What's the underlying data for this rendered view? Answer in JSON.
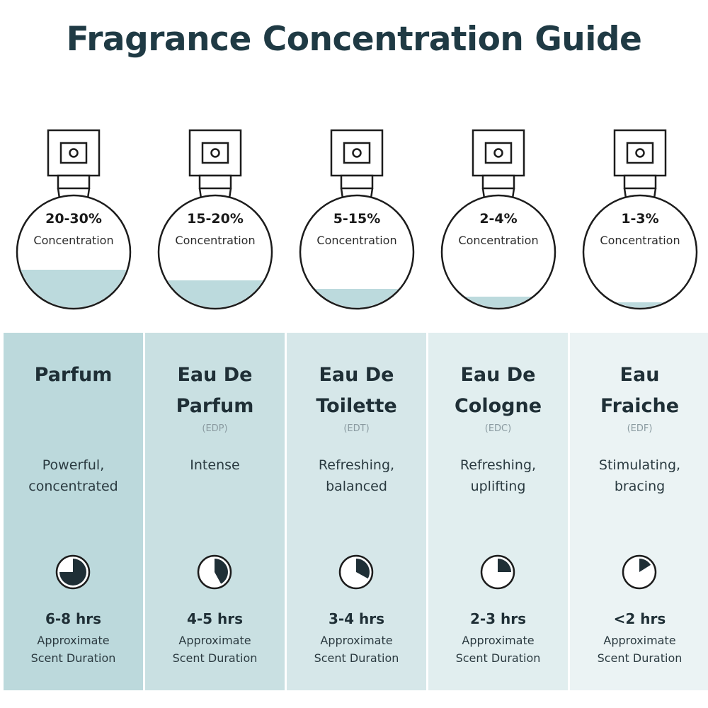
{
  "title": "Fragrance Concentration Guide",
  "colors": {
    "liquid": "#bcdadd",
    "outline": "#1c1c1c",
    "clock_fill": "#1f2f36",
    "panel_backgrounds": [
      "#bcd9dc",
      "#c9e0e2",
      "#d6e7e9",
      "#e1eeef",
      "#ebf3f4"
    ]
  },
  "duration_label": "Approximate Scent Duration",
  "types": [
    {
      "concentration": "20-30%",
      "concentration_label": "Concentration",
      "fill_level": 0.3,
      "name": "Parfum",
      "abbreviation": "",
      "description": "Powerful, concentrated",
      "duration": "6-8 hrs",
      "duration_fraction": 0.75,
      "duration_label_1": "Approximate",
      "duration_label_2": "Scent Duration"
    },
    {
      "concentration": "15-20%",
      "concentration_label": "Concentration",
      "fill_level": 0.22,
      "name": "Eau De Parfum",
      "abbreviation": "(EDP)",
      "description": "Intense",
      "duration": "4-5 hrs",
      "duration_fraction": 0.42,
      "duration_label_1": "Approximate",
      "duration_label_2": "Scent Duration"
    },
    {
      "concentration": "5-15%",
      "concentration_label": "Concentration",
      "fill_level": 0.15,
      "name": "Eau De Toilette",
      "abbreviation": "(EDT)",
      "description": "Refreshing, balanced",
      "duration": "3-4 hrs",
      "duration_fraction": 0.33,
      "duration_label_1": "Approximate",
      "duration_label_2": "Scent Duration"
    },
    {
      "concentration": "2-4%",
      "concentration_label": "Concentration",
      "fill_level": 0.09,
      "name": "Eau De Cologne",
      "abbreviation": "(EDC)",
      "description": "Refreshing, uplifting",
      "duration": "2-3 hrs",
      "duration_fraction": 0.25,
      "duration_label_1": "Approximate",
      "duration_label_2": "Scent Duration"
    },
    {
      "concentration": "1-3%",
      "concentration_label": "Concentration",
      "fill_level": 0.05,
      "name": "Eau Fraiche",
      "abbreviation": "(EDF)",
      "description": "Stimulating, bracing",
      "duration": "<2 hrs",
      "duration_fraction": 0.16,
      "duration_label_1": "Approximate",
      "duration_label_2": "Scent Duration"
    }
  ]
}
